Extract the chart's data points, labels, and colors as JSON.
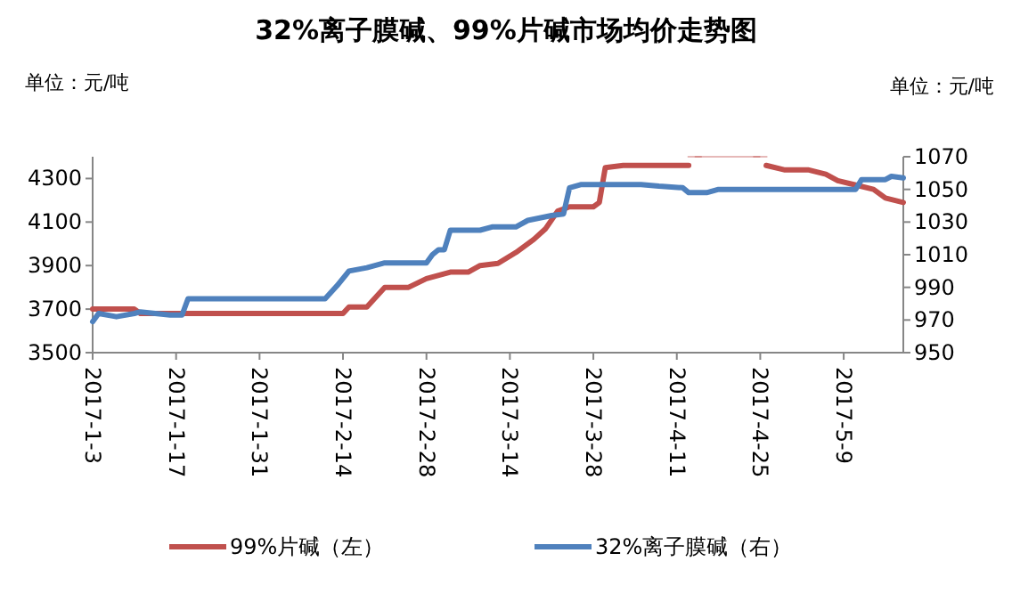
{
  "chart_data": {
    "type": "line",
    "title": "32%离子膜碱、99%片碱市场均价走势图",
    "ylabel": "单位：元/吨",
    "y2label": "单位：元/吨",
    "xlim": [
      "2017-01-03",
      "2017-05-19"
    ],
    "xticks": [
      {
        "value": "2017-01-03",
        "label": "2017-1-3"
      },
      {
        "value": "2017-01-17",
        "label": "2017-1-17"
      },
      {
        "value": "2017-01-31",
        "label": "2017-1-31"
      },
      {
        "value": "2017-02-14",
        "label": "2017-2-14"
      },
      {
        "value": "2017-02-28",
        "label": "2017-2-28"
      },
      {
        "value": "2017-03-14",
        "label": "2017-3-14"
      },
      {
        "value": "2017-03-28",
        "label": "2017-3-28"
      },
      {
        "value": "2017-04-11",
        "label": "2017-4-11"
      },
      {
        "value": "2017-04-25",
        "label": "2017-4-25"
      },
      {
        "value": "2017-05-09",
        "label": "2017-5-9"
      }
    ],
    "ylim": [
      3500,
      4400
    ],
    "yticks": [
      3500,
      3700,
      3900,
      4100,
      4300
    ],
    "y2lim": [
      950,
      1070
    ],
    "y2ticks": [
      950,
      970,
      990,
      1010,
      1030,
      1050,
      1070
    ],
    "legend": "bottom",
    "grid": false,
    "series": [
      {
        "name": "99%片碱（左）",
        "color": "#c0504d",
        "axis": "y",
        "x": [
          "2017-01-03",
          "2017-01-10",
          "2017-01-11",
          "2017-02-14",
          "2017-02-15",
          "2017-02-18",
          "2017-02-21",
          "2017-02-25",
          "2017-02-28",
          "2017-03-04",
          "2017-03-07",
          "2017-03-09",
          "2017-03-12",
          "2017-03-15",
          "2017-03-18",
          "2017-03-20",
          "2017-03-22",
          "2017-03-24",
          "2017-03-28",
          "2017-03-29",
          "2017-03-30",
          "2017-04-02",
          "2017-04-13",
          "2017-04-14",
          "2017-04-25",
          "2017-04-26",
          "2017-04-29",
          "2017-05-03",
          "2017-05-06",
          "2017-05-08",
          "2017-05-11",
          "2017-05-14",
          "2017-05-16",
          "2017-05-19"
        ],
        "values": [
          3700,
          3700,
          3680,
          3680,
          3710,
          3710,
          3800,
          3800,
          3840,
          3870,
          3870,
          3900,
          3910,
          3960,
          4020,
          4070,
          4150,
          4170,
          4170,
          4190,
          4350,
          4360,
          4360,
          null,
          null,
          4360,
          4340,
          4340,
          4320,
          4290,
          4270,
          4250,
          4210,
          4190
        ]
      },
      {
        "name": "32%离子膜碱（右）",
        "color": "#4f81bd",
        "axis": "y2",
        "x": [
          "2017-01-03",
          "2017-01-04",
          "2017-01-07",
          "2017-01-10",
          "2017-01-11",
          "2017-01-16",
          "2017-01-18",
          "2017-01-19",
          "2017-02-11",
          "2017-02-13",
          "2017-02-15",
          "2017-02-18",
          "2017-02-21",
          "2017-02-28",
          "2017-03-01",
          "2017-03-02",
          "2017-03-03",
          "2017-03-04",
          "2017-03-09",
          "2017-03-11",
          "2017-03-15",
          "2017-03-17",
          "2017-03-21",
          "2017-03-23",
          "2017-03-24",
          "2017-03-26",
          "2017-04-05",
          "2017-04-08",
          "2017-04-12",
          "2017-04-13",
          "2017-04-16",
          "2017-04-18",
          "2017-05-11",
          "2017-05-12",
          "2017-05-16",
          "2017-05-17",
          "2017-05-19"
        ],
        "values": [
          969,
          974,
          972,
          974,
          975,
          973,
          973,
          983,
          983,
          991,
          1000,
          1002,
          1005,
          1005,
          1010,
          1013,
          1013,
          1025,
          1025,
          1027,
          1027,
          1031,
          1034,
          1035,
          1051,
          1053,
          1053,
          1052,
          1051,
          1048,
          1048,
          1050,
          1050,
          1056,
          1056,
          1058,
          1057
        ]
      }
    ]
  }
}
